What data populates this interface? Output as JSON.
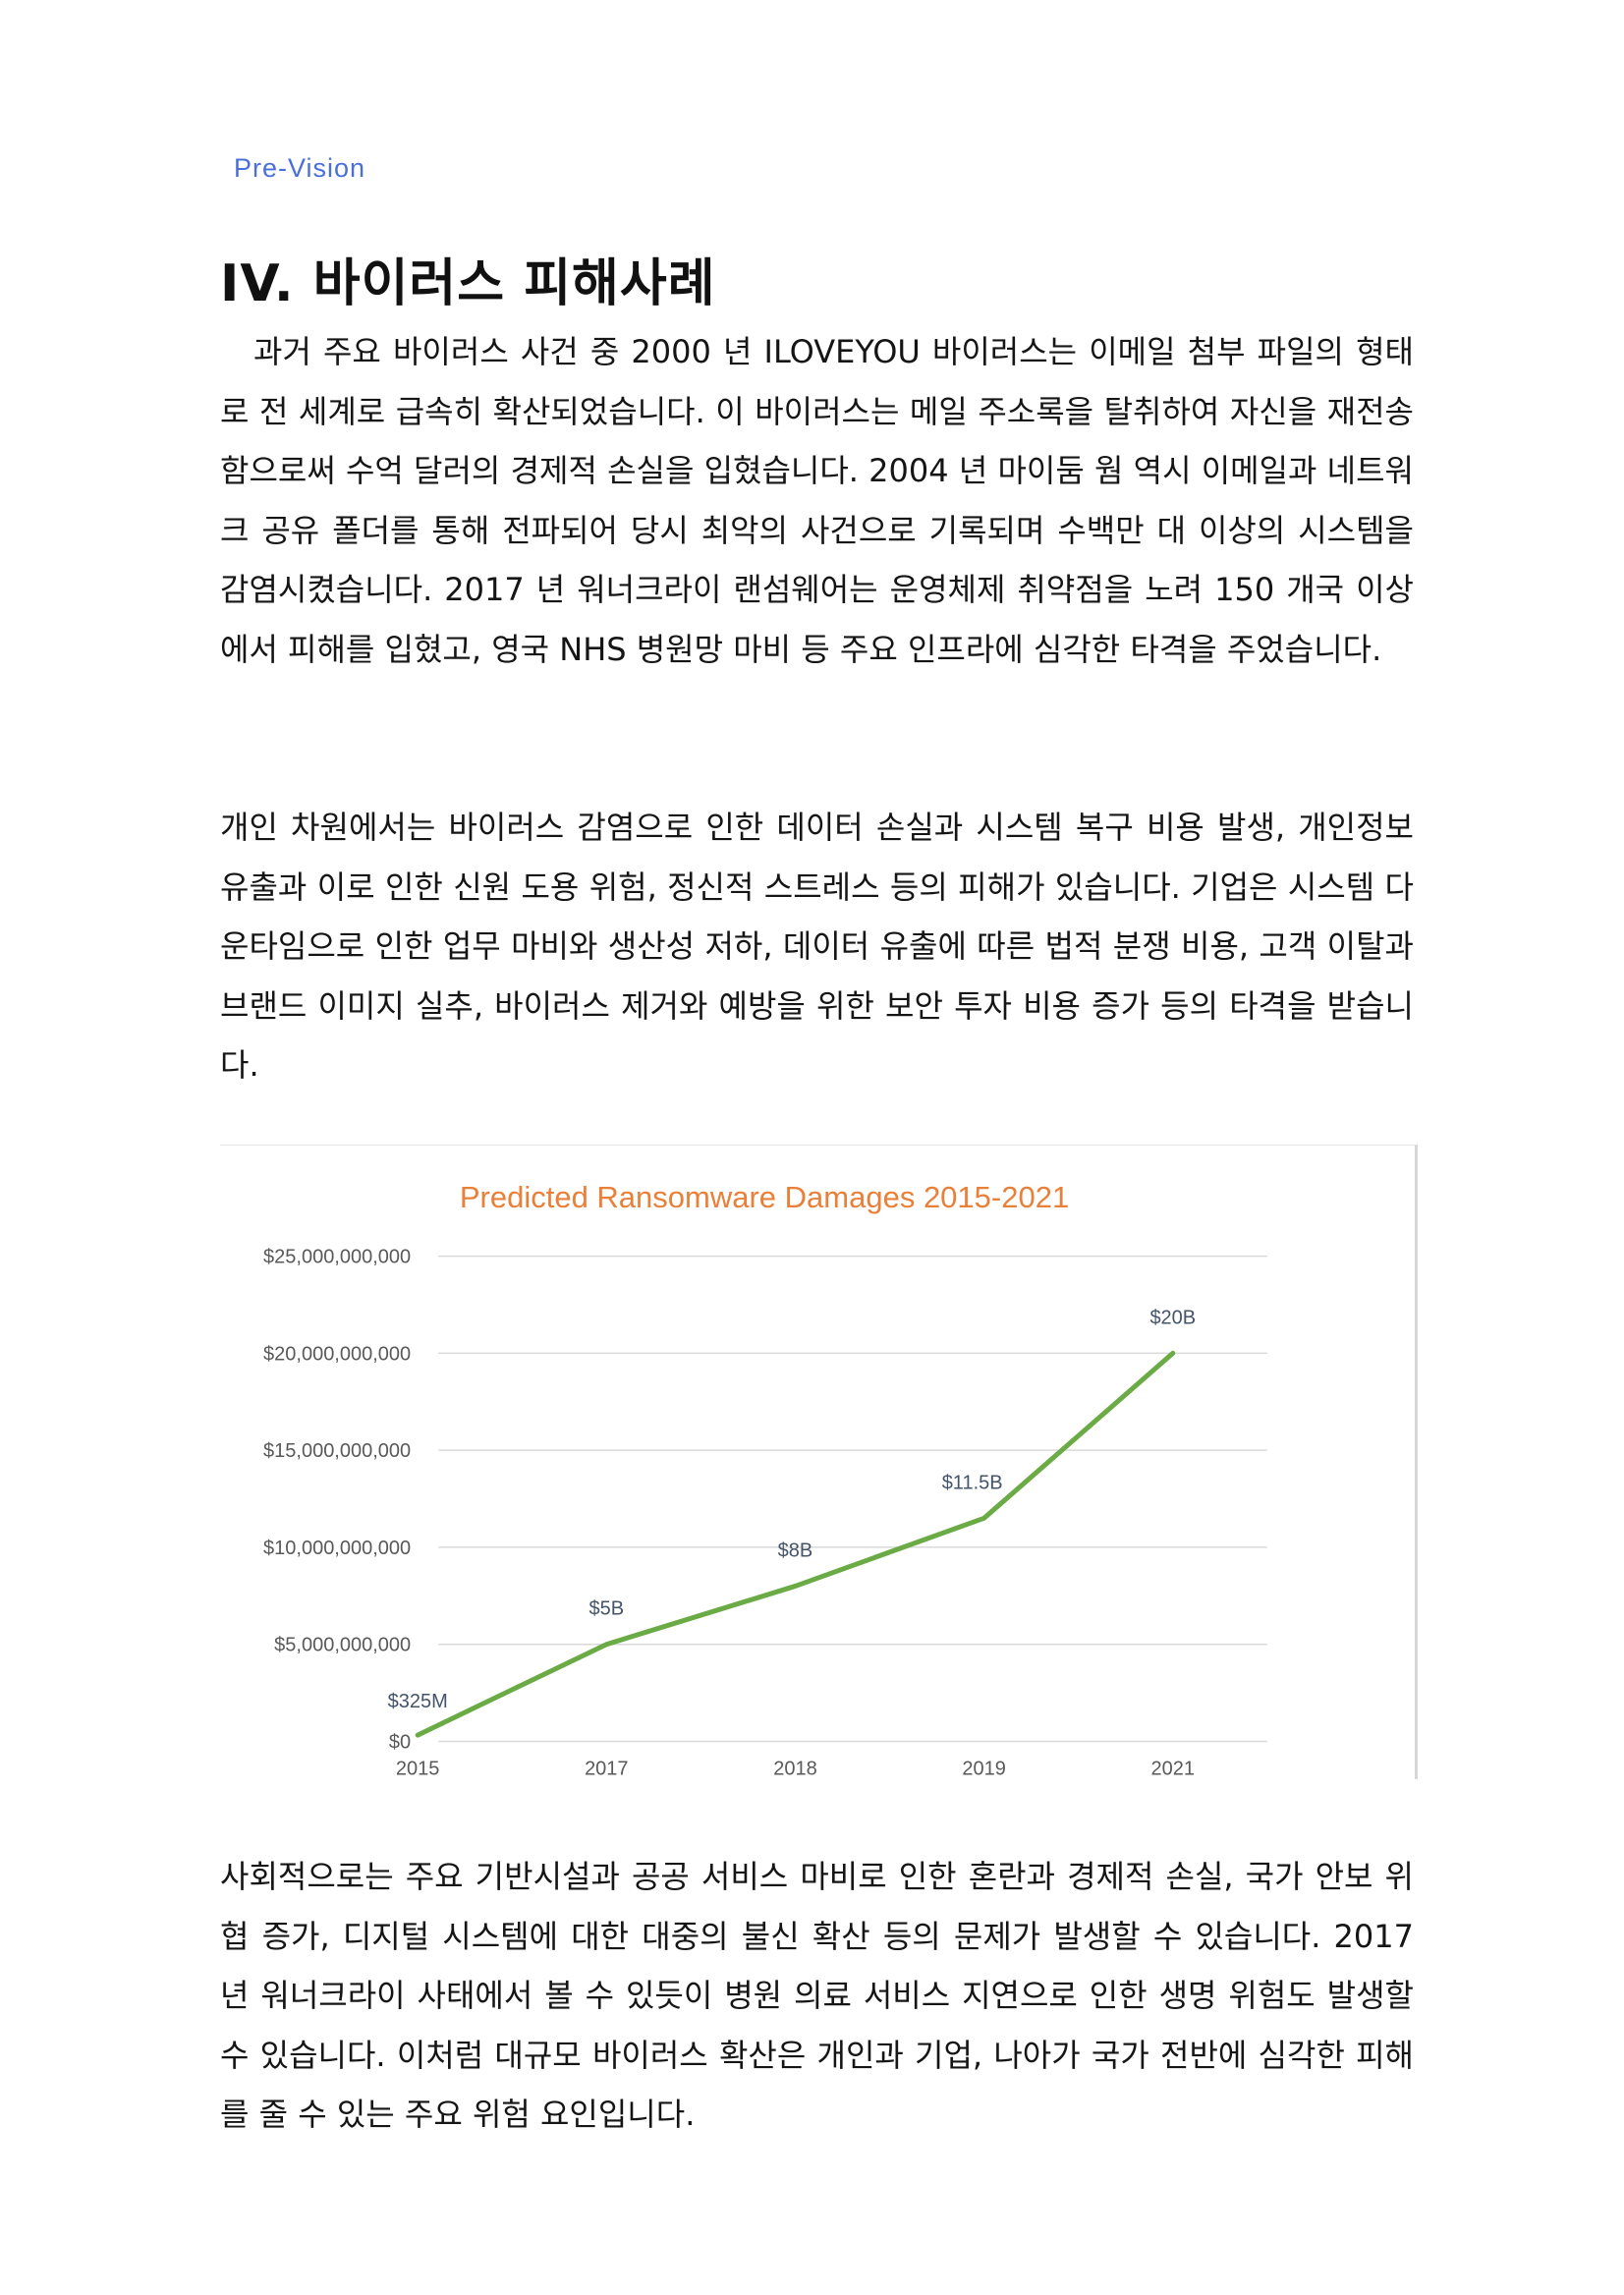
{
  "header": {
    "tag": "Pre-Vision"
  },
  "section": {
    "title": "IV. 바이러스 피해사례"
  },
  "paragraphs": [
    "과거 주요 바이러스 사건 중 2000 년 ILOVEYOU 바이러스는 이메일 첨부 파일의 형태로 전 세계로 급속히 확산되었습니다. 이 바이러스는 메일 주소록을 탈취하여 자신을 재전송함으로써 수억 달러의 경제적 손실을 입혔습니다. 2004 년 마이둠 웜 역시 이메일과 네트워크 공유 폴더를 통해 전파되어 당시 최악의 사건으로 기록되며 수백만 대 이상의 시스템을 감염시켰습니다. 2017 년 워너크라이 랜섬웨어는 운영체제 취약점을 노려 150 개국 이상에서 피해를 입혔고, 영국 NHS 병원망 마비 등 주요 인프라에 심각한 타격을 주었습니다.",
    "개인 차원에서는 바이러스 감염으로 인한 데이터 손실과 시스템 복구 비용 발생, 개인정보 유출과 이로 인한 신원 도용 위험, 정신적 스트레스 등의 피해가 있습니다. 기업은 시스템 다운타임으로 인한 업무 마비와 생산성 저하, 데이터 유출에 따른 법적 분쟁 비용, 고객 이탈과 브랜드 이미지 실추, 바이러스 제거와 예방을 위한 보안 투자 비용 증가 등의 타격을 받습니다.",
    "사회적으로는 주요 기반시설과 공공 서비스 마비로 인한 혼란과 경제적 손실, 국가 안보 위협 증가, 디지털 시스템에 대한 대중의 불신 확산 등의 문제가 발생할 수 있습니다. 2017 년 워너크라이 사태에서 볼 수 있듯이 병원 의료 서비스 지연으로 인한 생명 위험도 발생할 수 있습니다. 이처럼 대규모 바이러스 확산은 개인과 기업, 나아가 국가 전반에 심각한 피해를 줄 수 있는 주요 위험 요인입니다."
  ],
  "chart_data": {
    "type": "line",
    "title": "Predicted Ransomware Damages 2015-2021",
    "xlabel": "",
    "ylabel": "",
    "categories": [
      "2015",
      "2017",
      "2018",
      "2019",
      "2021"
    ],
    "series": [
      {
        "values": [
          325000000,
          5000000000,
          8000000000,
          11500000000,
          20000000000
        ],
        "data_labels": [
          "$325M",
          "$5B",
          "$8B",
          "$11.5B",
          "$20B"
        ]
      }
    ],
    "ylim": [
      0,
      25000000000
    ],
    "y_ticks": [
      0,
      5000000000,
      10000000000,
      15000000000,
      20000000000,
      25000000000
    ],
    "y_tick_labels": [
      "$0",
      "$5,000,000,000",
      "$10,000,000,000",
      "$15,000,000,000",
      "$20,000,000,000",
      "$25,000,000,000"
    ],
    "grid": true,
    "legend": "none",
    "colors": {
      "title": "#e8803a",
      "line": "#6aab46",
      "grid": "#d9d9d9",
      "tick_text": "#595959",
      "data_label": "#44546a"
    }
  }
}
